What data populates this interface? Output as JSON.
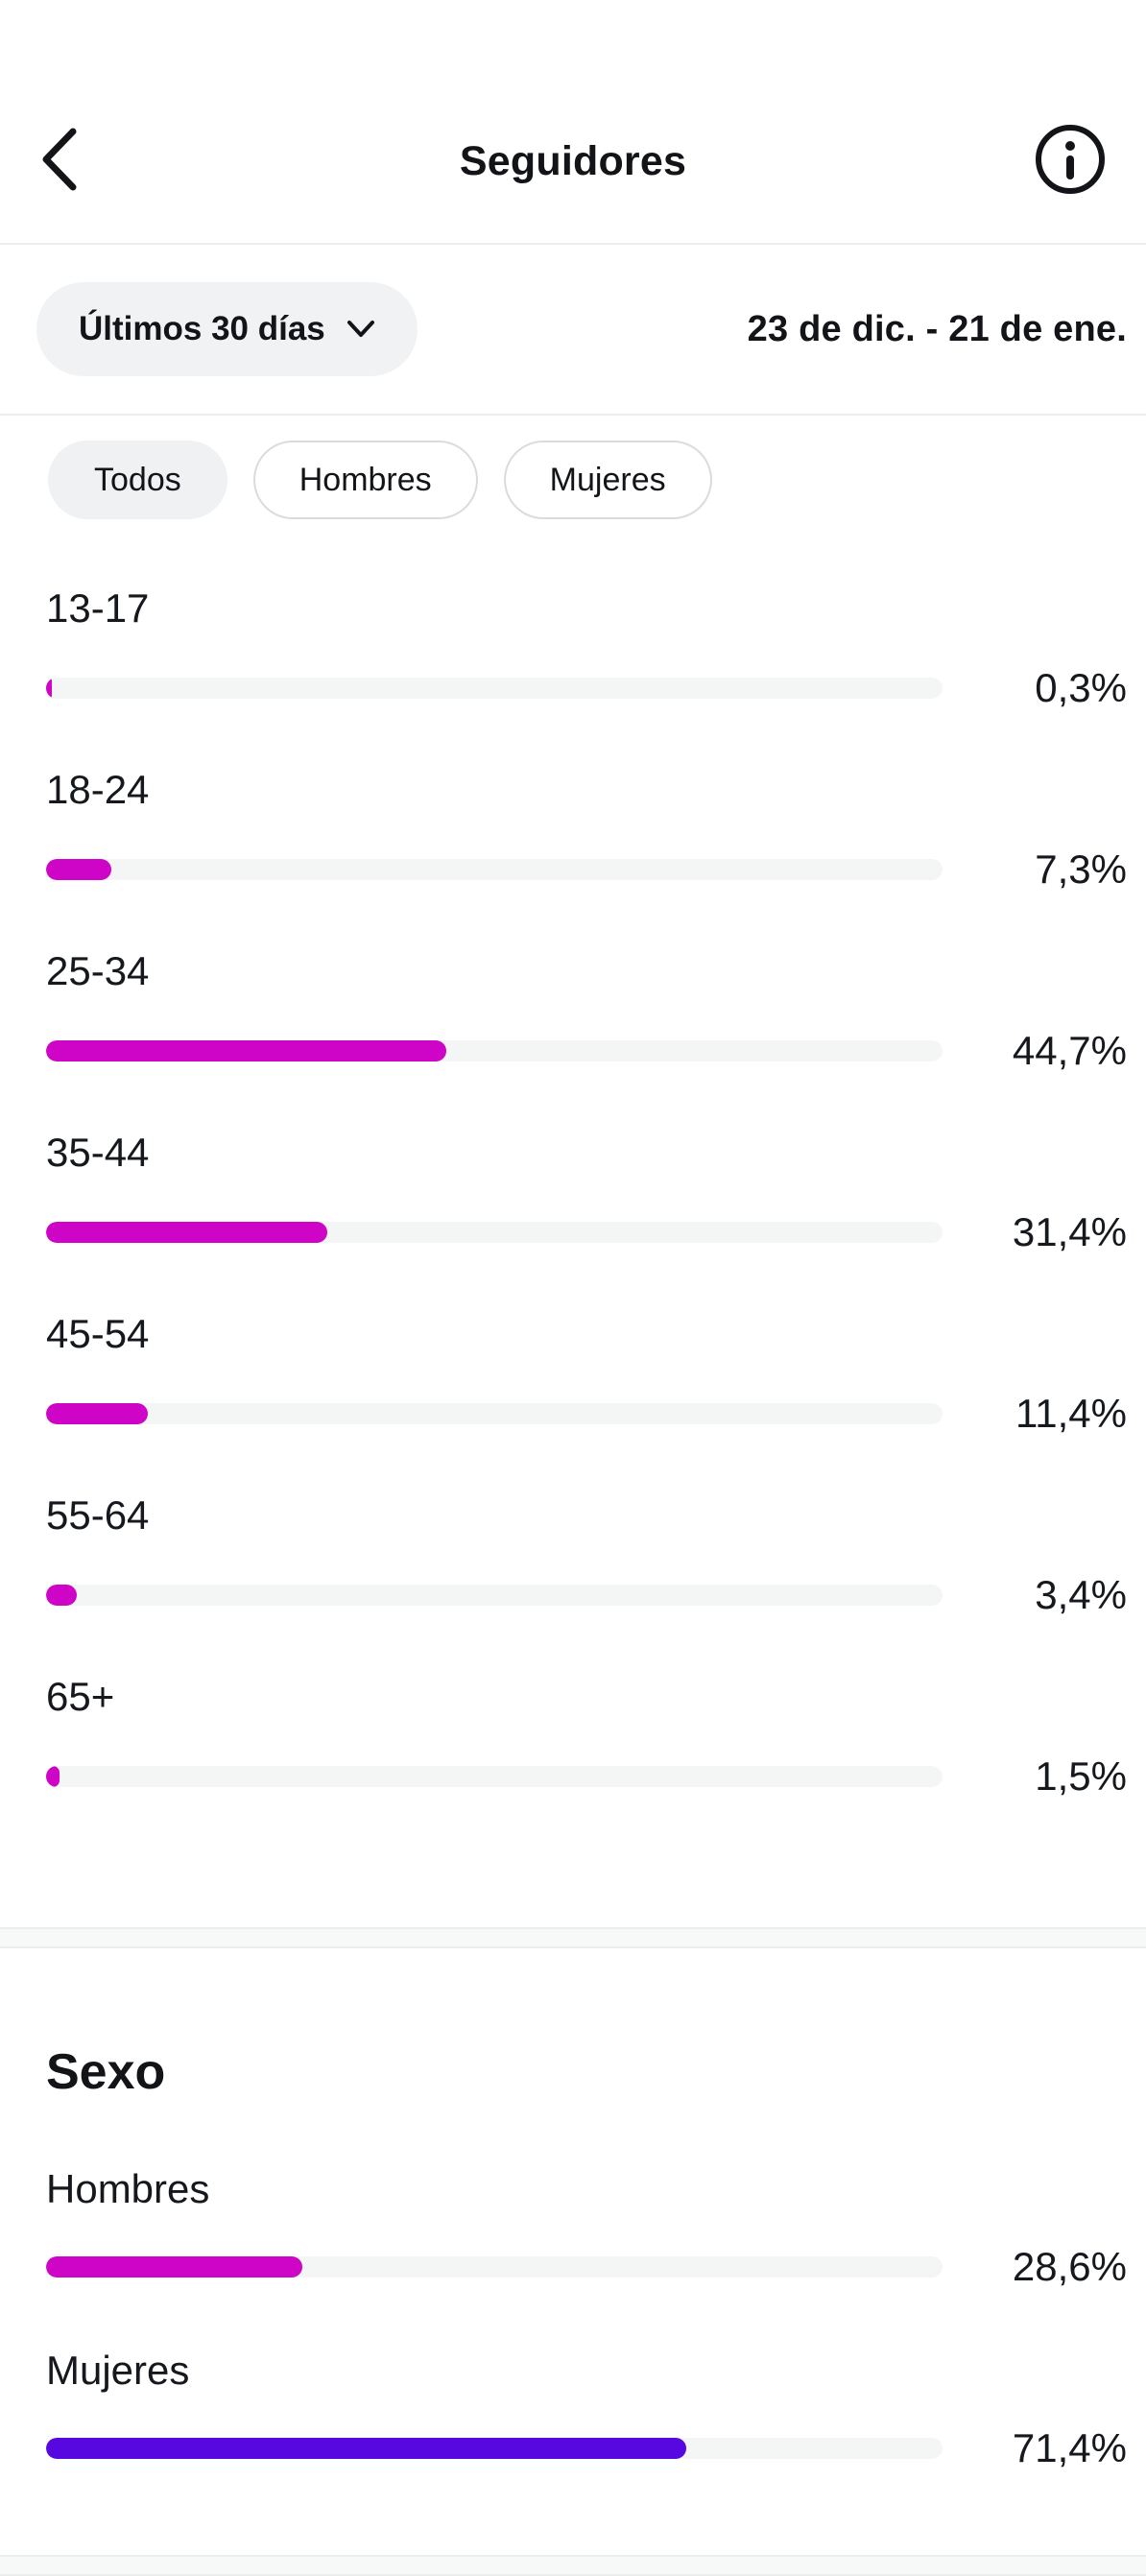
{
  "header": {
    "title": "Seguidores"
  },
  "filters": {
    "period_label": "Últimos 30 días",
    "date_range": "23 de dic. - 21 de ene."
  },
  "chips": [
    {
      "label": "Todos",
      "selected": true
    },
    {
      "label": "Hombres",
      "selected": false
    },
    {
      "label": "Mujeres",
      "selected": false
    }
  ],
  "colors": {
    "age_bar": "#CE04C6",
    "men_bar": "#CE04C6",
    "women_bar": "#5708E0",
    "track": "#F4F5F5"
  },
  "age_chart": {
    "type": "bar",
    "rows": [
      {
        "label": "13-17",
        "pct": 0.3,
        "display": "0,3%"
      },
      {
        "label": "18-24",
        "pct": 7.3,
        "display": "7,3%"
      },
      {
        "label": "25-34",
        "pct": 44.7,
        "display": "44,7%"
      },
      {
        "label": "35-44",
        "pct": 31.4,
        "display": "31,4%"
      },
      {
        "label": "45-54",
        "pct": 11.4,
        "display": "11,4%"
      },
      {
        "label": "55-64",
        "pct": 3.4,
        "display": "3,4%"
      },
      {
        "label": "65+",
        "pct": 1.5,
        "display": "1,5%"
      }
    ]
  },
  "sexo": {
    "title": "Sexo",
    "rows": [
      {
        "label": "Hombres",
        "pct": 28.6,
        "display": "28,6%",
        "color_key": "men_bar"
      },
      {
        "label": "Mujeres",
        "pct": 71.4,
        "display": "71,4%",
        "color_key": "women_bar"
      }
    ]
  }
}
